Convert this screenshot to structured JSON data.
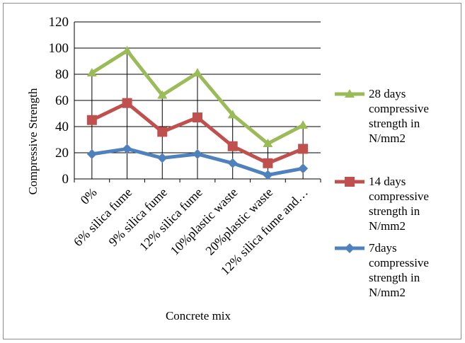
{
  "chart_data": {
    "type": "line",
    "title": "",
    "xlabel": "Concrete mix",
    "ylabel": "Compressive Strength",
    "ylim": [
      0,
      120
    ],
    "yticks": [
      0,
      20,
      40,
      60,
      80,
      100,
      120
    ],
    "grid": "horizontal",
    "legend_position": "right",
    "categories": [
      "0%",
      "6% silica fume",
      "9% silica fume",
      "12% silica fume",
      "10%plastic waste",
      "20%plastic waste",
      "12% silica fume and…"
    ],
    "series": [
      {
        "name": "28 days compressive strength in N/mm2",
        "legend_lines": [
          "28 days",
          "compressive",
          "strength in",
          "N/mm2"
        ],
        "marker": "triangle",
        "color": "#9bbb59",
        "values": [
          81,
          98,
          64,
          81,
          49,
          27,
          41
        ]
      },
      {
        "name": "14 days compressive strength in N/mm2",
        "legend_lines": [
          "14 days",
          "compressive",
          "strength in",
          "N/mm2"
        ],
        "marker": "square",
        "color": "#c0504d",
        "values": [
          45,
          58,
          36,
          47,
          25,
          12,
          23
        ]
      },
      {
        "name": "7days compressive strength in N/mm2",
        "legend_lines": [
          "7days",
          "compressive",
          "strength in",
          "N/mm2"
        ],
        "marker": "diamond",
        "color": "#4f81bd",
        "values": [
          19,
          23,
          16,
          19,
          12,
          3,
          8
        ]
      }
    ]
  }
}
